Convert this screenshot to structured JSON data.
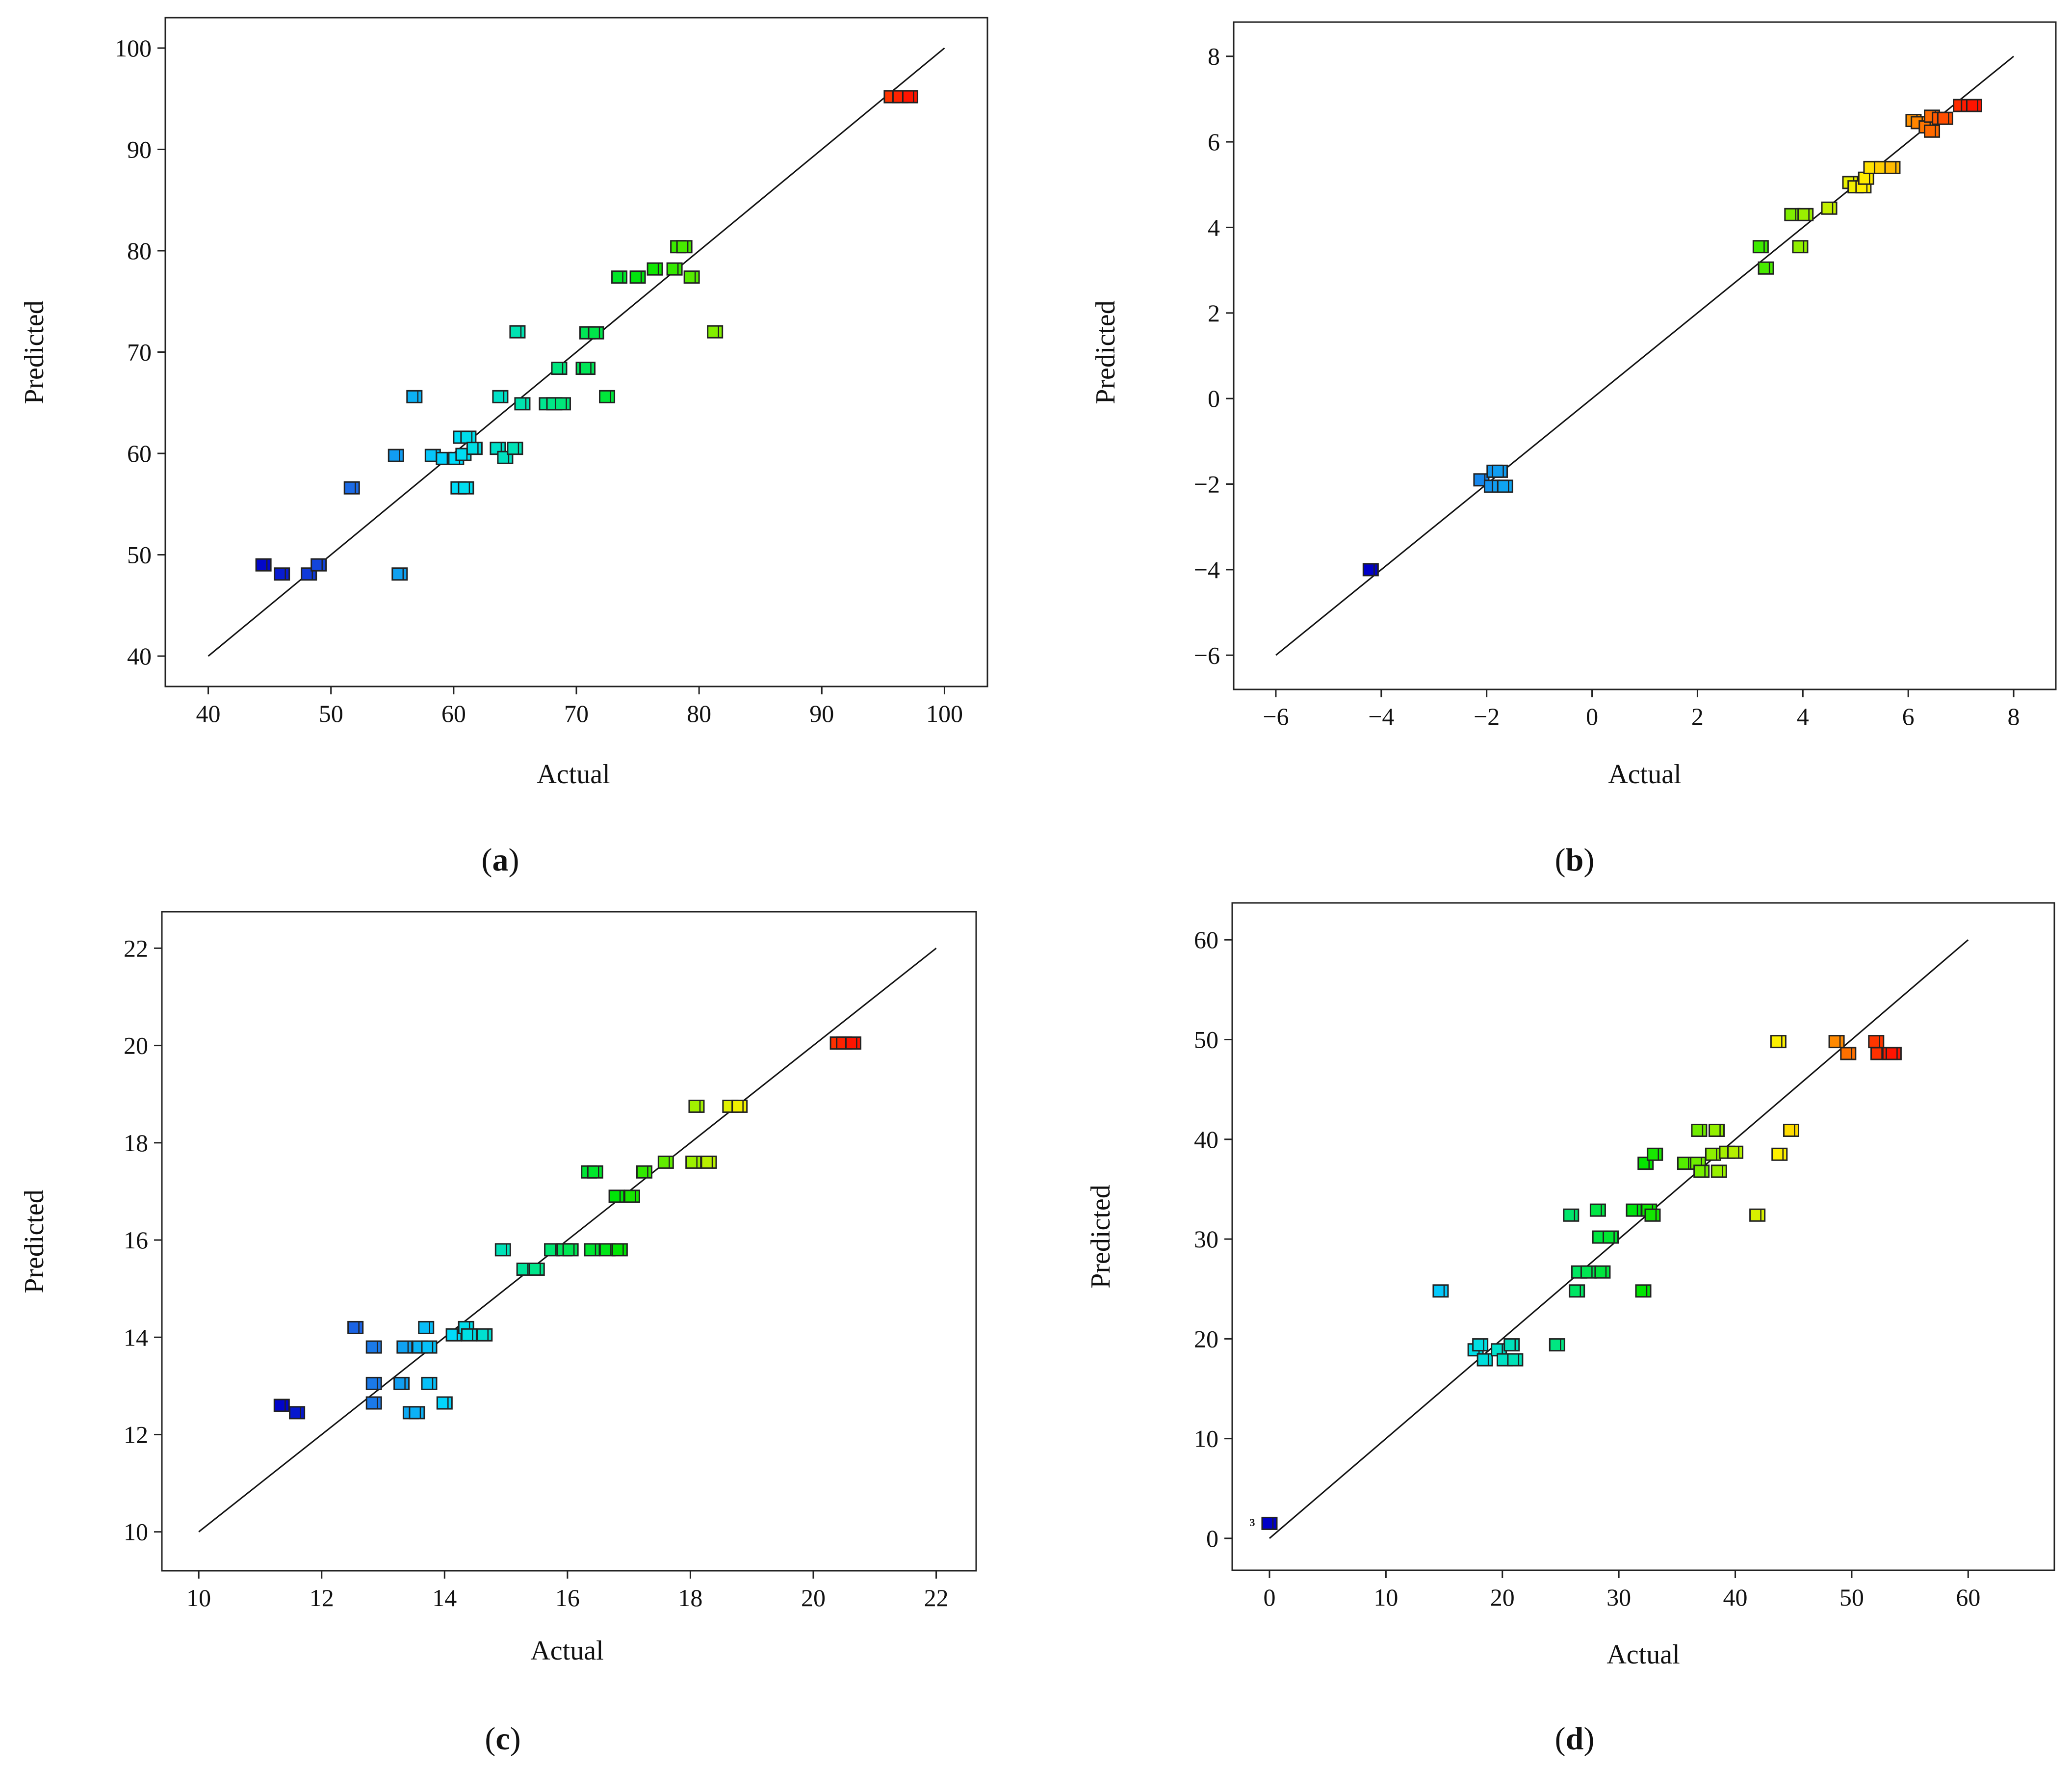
{
  "chart_data": [
    {
      "type": "scatter",
      "caption_letter": "a",
      "xlabel": "Actual",
      "ylabel": "Predicted",
      "xlim": [
        36.5,
        103.5
      ],
      "ylim": [
        37,
        103
      ],
      "xticks": [
        40,
        50,
        60,
        70,
        80,
        90,
        100
      ],
      "yticks": [
        40,
        50,
        60,
        70,
        80,
        90,
        100
      ],
      "xtick_labels": [
        "40",
        "50",
        "60",
        "70",
        "80",
        "90",
        "100"
      ],
      "ytick_labels": [
        "40",
        "50",
        "60",
        "70",
        "80",
        "90",
        "100"
      ],
      "fit_line": [
        [
          40,
          40
        ],
        [
          100,
          100
        ]
      ],
      "color_range": [
        44,
        97
      ],
      "points": [
        {
          "x": 44.5,
          "y": 49.0
        },
        {
          "x": 46.0,
          "y": 48.1
        },
        {
          "x": 48.2,
          "y": 48.1
        },
        {
          "x": 49.0,
          "y": 49.0
        },
        {
          "x": 51.7,
          "y": 56.6
        },
        {
          "x": 55.3,
          "y": 59.8
        },
        {
          "x": 55.6,
          "y": 48.1
        },
        {
          "x": 56.8,
          "y": 65.6
        },
        {
          "x": 58.3,
          "y": 59.8
        },
        {
          "x": 59.2,
          "y": 59.5
        },
        {
          "x": 60.2,
          "y": 59.5
        },
        {
          "x": 60.4,
          "y": 56.6
        },
        {
          "x": 61.0,
          "y": 56.6
        },
        {
          "x": 60.8,
          "y": 59.9
        },
        {
          "x": 60.6,
          "y": 61.6
        },
        {
          "x": 61.2,
          "y": 61.6
        },
        {
          "x": 61.7,
          "y": 60.5
        },
        {
          "x": 63.6,
          "y": 60.5
        },
        {
          "x": 64.2,
          "y": 59.6
        },
        {
          "x": 63.8,
          "y": 65.6
        },
        {
          "x": 65.0,
          "y": 60.5
        },
        {
          "x": 65.2,
          "y": 72.0
        },
        {
          "x": 65.6,
          "y": 64.9
        },
        {
          "x": 67.6,
          "y": 64.9
        },
        {
          "x": 68.2,
          "y": 64.9
        },
        {
          "x": 68.9,
          "y": 64.9
        },
        {
          "x": 68.6,
          "y": 68.4
        },
        {
          "x": 70.6,
          "y": 68.4
        },
        {
          "x": 70.9,
          "y": 68.4
        },
        {
          "x": 70.9,
          "y": 71.9
        },
        {
          "x": 71.6,
          "y": 71.9
        },
        {
          "x": 72.5,
          "y": 65.6
        },
        {
          "x": 73.5,
          "y": 77.4
        },
        {
          "x": 75.0,
          "y": 77.4
        },
        {
          "x": 76.4,
          "y": 78.2
        },
        {
          "x": 78.0,
          "y": 78.2
        },
        {
          "x": 78.3,
          "y": 80.4
        },
        {
          "x": 78.8,
          "y": 80.4
        },
        {
          "x": 79.4,
          "y": 77.4
        },
        {
          "x": 81.3,
          "y": 72.0
        },
        {
          "x": 95.7,
          "y": 95.2
        },
        {
          "x": 96.4,
          "y": 95.2
        },
        {
          "x": 97.2,
          "y": 95.2
        }
      ]
    },
    {
      "type": "scatter",
      "caption_letter": "b",
      "xlabel": "Actual",
      "ylabel": "Predicted",
      "xlim": [
        -6.8,
        8.8
      ],
      "ylim": [
        -6.8,
        8.8
      ],
      "xticks": [
        -6,
        -4,
        -2,
        0,
        2,
        4,
        6,
        8
      ],
      "yticks": [
        -6,
        -4,
        -2,
        0,
        2,
        4,
        6,
        8
      ],
      "xtick_labels": [
        "−6",
        "−4",
        "−2",
        "0",
        "2",
        "4",
        "6",
        "8"
      ],
      "ytick_labels": [
        "−6",
        "−4",
        "−2",
        "0",
        "2",
        "4",
        "6",
        "8"
      ],
      "fit_line": [
        [
          -6,
          -6
        ],
        [
          8,
          8
        ]
      ],
      "color_range": [
        -4.2,
        7.2
      ],
      "points": [
        {
          "x": -4.2,
          "y": -4.0
        },
        {
          "x": -2.1,
          "y": -1.9
        },
        {
          "x": -1.85,
          "y": -1.7
        },
        {
          "x": -1.75,
          "y": -1.7
        },
        {
          "x": -1.9,
          "y": -2.05
        },
        {
          "x": -1.75,
          "y": -2.05
        },
        {
          "x": -1.65,
          "y": -2.05
        },
        {
          "x": 3.2,
          "y": 3.55
        },
        {
          "x": 3.3,
          "y": 3.05
        },
        {
          "x": 3.95,
          "y": 3.55
        },
        {
          "x": 3.8,
          "y": 4.3
        },
        {
          "x": 4.05,
          "y": 4.3
        },
        {
          "x": 4.5,
          "y": 4.45
        },
        {
          "x": 4.9,
          "y": 5.05
        },
        {
          "x": 5.0,
          "y": 4.95
        },
        {
          "x": 5.15,
          "y": 4.95
        },
        {
          "x": 5.2,
          "y": 5.15
        },
        {
          "x": 5.3,
          "y": 5.4
        },
        {
          "x": 5.5,
          "y": 5.4
        },
        {
          "x": 5.7,
          "y": 5.4
        },
        {
          "x": 6.1,
          "y": 6.5
        },
        {
          "x": 6.2,
          "y": 6.45
        },
        {
          "x": 6.35,
          "y": 6.35
        },
        {
          "x": 6.45,
          "y": 6.25
        },
        {
          "x": 6.45,
          "y": 6.6
        },
        {
          "x": 6.6,
          "y": 6.55
        },
        {
          "x": 6.7,
          "y": 6.55
        },
        {
          "x": 7.0,
          "y": 6.85
        },
        {
          "x": 7.15,
          "y": 6.85
        },
        {
          "x": 7.25,
          "y": 6.85
        }
      ]
    },
    {
      "type": "scatter",
      "caption_letter": "c",
      "xlabel": "Actual",
      "ylabel": "Predicted",
      "xlim": [
        9.4,
        22.65
      ],
      "ylim": [
        9.2,
        22.75
      ],
      "xticks": [
        10,
        12,
        14,
        16,
        18,
        20,
        22
      ],
      "yticks": [
        10,
        12,
        14,
        16,
        18,
        20,
        22
      ],
      "xtick_labels": [
        "10",
        "12",
        "14",
        "16",
        "18",
        "20",
        "22"
      ],
      "ytick_labels": [
        "10",
        "12",
        "14",
        "16",
        "18",
        "20",
        "22"
      ],
      "fit_line": [
        [
          10,
          10
        ],
        [
          22,
          22
        ]
      ],
      "color_range": [
        11.3,
        20.6
      ],
      "points": [
        {
          "x": 11.35,
          "y": 12.6
        },
        {
          "x": 11.6,
          "y": 12.45
        },
        {
          "x": 12.55,
          "y": 14.2
        },
        {
          "x": 12.85,
          "y": 13.8
        },
        {
          "x": 12.85,
          "y": 13.05
        },
        {
          "x": 12.85,
          "y": 12.65
        },
        {
          "x": 13.3,
          "y": 13.05
        },
        {
          "x": 13.35,
          "y": 13.8
        },
        {
          "x": 13.45,
          "y": 12.45
        },
        {
          "x": 13.55,
          "y": 12.45
        },
        {
          "x": 13.6,
          "y": 13.8
        },
        {
          "x": 13.7,
          "y": 14.2
        },
        {
          "x": 13.75,
          "y": 13.05
        },
        {
          "x": 13.75,
          "y": 13.8
        },
        {
          "x": 14.0,
          "y": 12.65
        },
        {
          "x": 14.15,
          "y": 14.05
        },
        {
          "x": 14.35,
          "y": 14.2
        },
        {
          "x": 14.4,
          "y": 14.05
        },
        {
          "x": 14.65,
          "y": 14.05
        },
        {
          "x": 14.95,
          "y": 15.8
        },
        {
          "x": 15.3,
          "y": 15.4
        },
        {
          "x": 15.5,
          "y": 15.4
        },
        {
          "x": 15.75,
          "y": 15.8
        },
        {
          "x": 15.95,
          "y": 15.8
        },
        {
          "x": 16.05,
          "y": 15.8
        },
        {
          "x": 16.4,
          "y": 15.8
        },
        {
          "x": 16.65,
          "y": 15.8
        },
        {
          "x": 16.85,
          "y": 15.8
        },
        {
          "x": 16.35,
          "y": 17.4
        },
        {
          "x": 16.45,
          "y": 17.4
        },
        {
          "x": 16.8,
          "y": 16.9
        },
        {
          "x": 17.05,
          "y": 16.9
        },
        {
          "x": 17.25,
          "y": 17.4
        },
        {
          "x": 17.6,
          "y": 17.6
        },
        {
          "x": 18.05,
          "y": 17.6
        },
        {
          "x": 18.3,
          "y": 17.6
        },
        {
          "x": 18.1,
          "y": 18.75
        },
        {
          "x": 18.65,
          "y": 18.75
        },
        {
          "x": 18.8,
          "y": 18.75
        },
        {
          "x": 20.4,
          "y": 20.05
        },
        {
          "x": 20.5,
          "y": 20.05
        },
        {
          "x": 20.65,
          "y": 20.05
        }
      ]
    },
    {
      "type": "scatter",
      "caption_letter": "d",
      "xlabel": "Actual",
      "ylabel": "Predicted",
      "xlim": [
        -3.2,
        67.4
      ],
      "ylim": [
        -3.2,
        63.7
      ],
      "xticks": [
        0,
        10,
        20,
        30,
        40,
        50,
        60
      ],
      "yticks": [
        0,
        10,
        20,
        30,
        40,
        50,
        60
      ],
      "xtick_labels": [
        "0",
        "10",
        "20",
        "30",
        "40",
        "50",
        "60"
      ],
      "ytick_labels": [
        "0",
        "10",
        "20",
        "30",
        "40",
        "50",
        "60"
      ],
      "fit_line": [
        [
          0,
          0
        ],
        [
          60,
          60
        ]
      ],
      "color_range": [
        0,
        53.5
      ],
      "annotation": "3",
      "points": [
        {
          "x": 0.0,
          "y": 1.5
        },
        {
          "x": 14.7,
          "y": 24.8
        },
        {
          "x": 17.7,
          "y": 18.9
        },
        {
          "x": 18.1,
          "y": 19.4
        },
        {
          "x": 18.5,
          "y": 17.9
        },
        {
          "x": 19.7,
          "y": 18.9
        },
        {
          "x": 20.2,
          "y": 17.9
        },
        {
          "x": 20.8,
          "y": 19.4
        },
        {
          "x": 21.1,
          "y": 17.9
        },
        {
          "x": 24.7,
          "y": 19.4
        },
        {
          "x": 25.9,
          "y": 32.4
        },
        {
          "x": 26.4,
          "y": 24.8
        },
        {
          "x": 26.6,
          "y": 26.7
        },
        {
          "x": 27.4,
          "y": 26.7
        },
        {
          "x": 28.2,
          "y": 32.9
        },
        {
          "x": 28.4,
          "y": 30.2
        },
        {
          "x": 28.6,
          "y": 26.7
        },
        {
          "x": 29.3,
          "y": 30.2
        },
        {
          "x": 31.3,
          "y": 32.9
        },
        {
          "x": 32.1,
          "y": 24.8
        },
        {
          "x": 32.3,
          "y": 37.6
        },
        {
          "x": 32.6,
          "y": 32.9
        },
        {
          "x": 32.9,
          "y": 32.4
        },
        {
          "x": 33.1,
          "y": 38.5
        },
        {
          "x": 35.7,
          "y": 37.6
        },
        {
          "x": 36.8,
          "y": 37.6
        },
        {
          "x": 36.9,
          "y": 40.9
        },
        {
          "x": 37.1,
          "y": 36.8
        },
        {
          "x": 38.1,
          "y": 38.5
        },
        {
          "x": 38.4,
          "y": 40.9
        },
        {
          "x": 38.6,
          "y": 36.8
        },
        {
          "x": 39.3,
          "y": 38.7
        },
        {
          "x": 40.0,
          "y": 38.7
        },
        {
          "x": 41.9,
          "y": 32.4
        },
        {
          "x": 43.7,
          "y": 49.8
        },
        {
          "x": 43.8,
          "y": 38.5
        },
        {
          "x": 44.8,
          "y": 40.9
        },
        {
          "x": 48.7,
          "y": 49.8
        },
        {
          "x": 49.7,
          "y": 48.6
        },
        {
          "x": 52.1,
          "y": 49.8
        },
        {
          "x": 52.3,
          "y": 48.6
        },
        {
          "x": 53.3,
          "y": 48.6
        },
        {
          "x": 53.6,
          "y": 48.6
        }
      ]
    }
  ]
}
